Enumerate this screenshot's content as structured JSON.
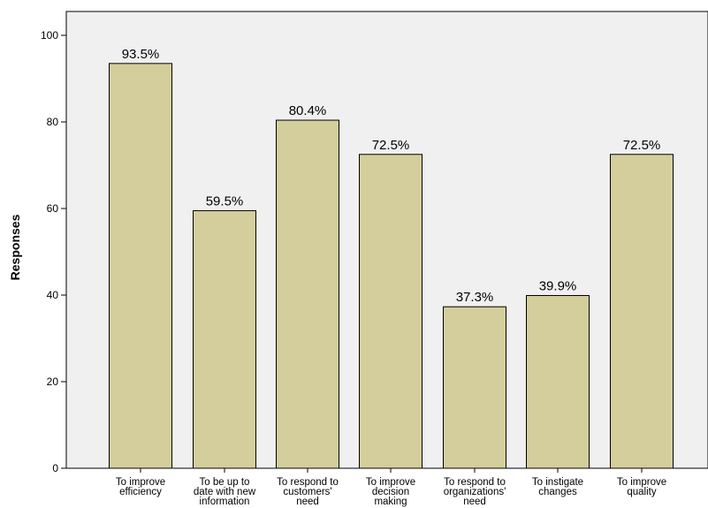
{
  "chart_data": {
    "type": "bar",
    "title": "",
    "xlabel": "",
    "ylabel": "Responses",
    "ylim": [
      0,
      100
    ],
    "yticks": [
      0,
      20,
      40,
      60,
      80,
      100
    ],
    "grid": false,
    "categories": [
      [
        "To improve",
        "efficiency"
      ],
      [
        "To be up to",
        "date with new",
        "information"
      ],
      [
        "To respond to",
        "customers'",
        "need"
      ],
      [
        "To improve",
        "decision",
        "making"
      ],
      [
        "To respond to",
        "organizations'",
        "need"
      ],
      [
        "To instigate",
        "changes"
      ],
      [
        "To improve",
        "quality"
      ]
    ],
    "values": [
      93.5,
      59.5,
      80.4,
      72.5,
      37.3,
      39.9,
      72.5
    ],
    "data_labels": [
      "93.5%",
      "59.5%",
      "80.4%",
      "72.5%",
      "37.3%",
      "39.9%",
      "72.5%"
    ],
    "colors": {
      "plot_background": "#f0f0f0",
      "bar_fill": "#d3ce9b",
      "bar_stroke": "#000000",
      "axis": "#000000"
    }
  }
}
